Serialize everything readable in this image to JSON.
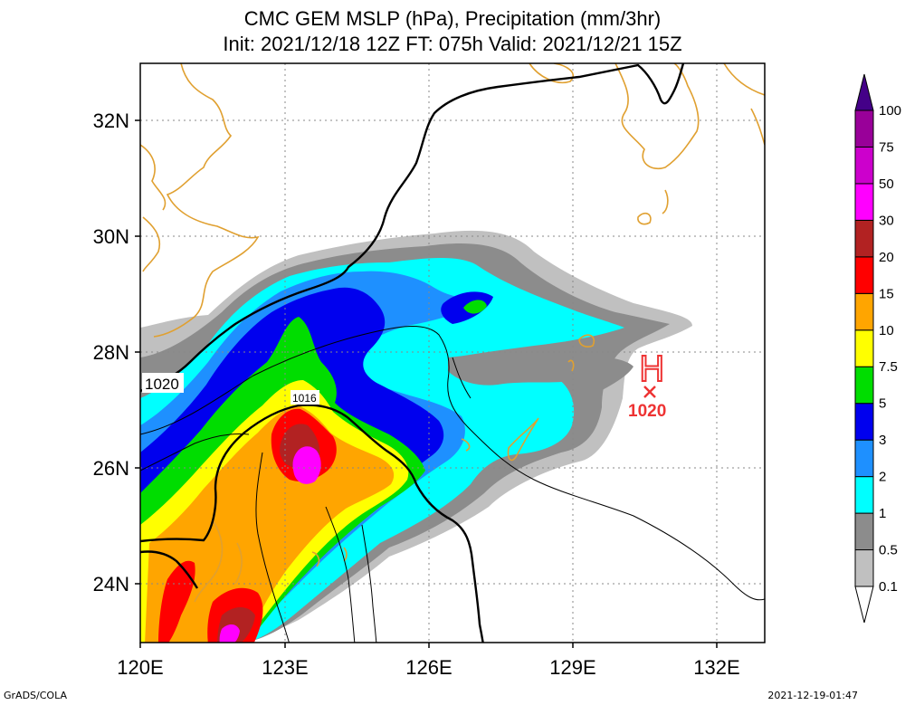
{
  "title": {
    "line1": "CMC GEM MSLP (hPa), Precipitation (mm/3hr)",
    "line2": "Init: 2021/12/18 12Z  FT: 075h  Valid: 2021/12/21 15Z"
  },
  "map": {
    "lon_range": [
      120,
      133
    ],
    "lat_range": [
      23,
      33
    ],
    "x_ticks": [
      "120E",
      "123E",
      "126E",
      "129E",
      "132E"
    ],
    "y_ticks": [
      "32N",
      "30N",
      "28N",
      "26N",
      "24N"
    ],
    "isobar_labels": [
      "1020",
      "1016"
    ],
    "high_center": {
      "symbol": "H",
      "value": "1020",
      "color": "#ee3333"
    },
    "coastline_color": "#e0a030",
    "grid": "dotted"
  },
  "colorbar": {
    "levels": [
      "0.1",
      "0.5",
      "1",
      "2",
      "3",
      "5",
      "7.5",
      "10",
      "15",
      "20",
      "30",
      "50",
      "75",
      "100"
    ],
    "colors": [
      "#c0c0c0",
      "#8c8c8c",
      "#00ffff",
      "#1e90ff",
      "#0000ee",
      "#00dd00",
      "#ffff00",
      "#ffa500",
      "#ff0000",
      "#b22222",
      "#ff00ff",
      "#cc00cc",
      "#990099",
      "#440088"
    ]
  },
  "footer": {
    "left": "GrADS/COLA",
    "right": "2021-12-19-01:47"
  }
}
